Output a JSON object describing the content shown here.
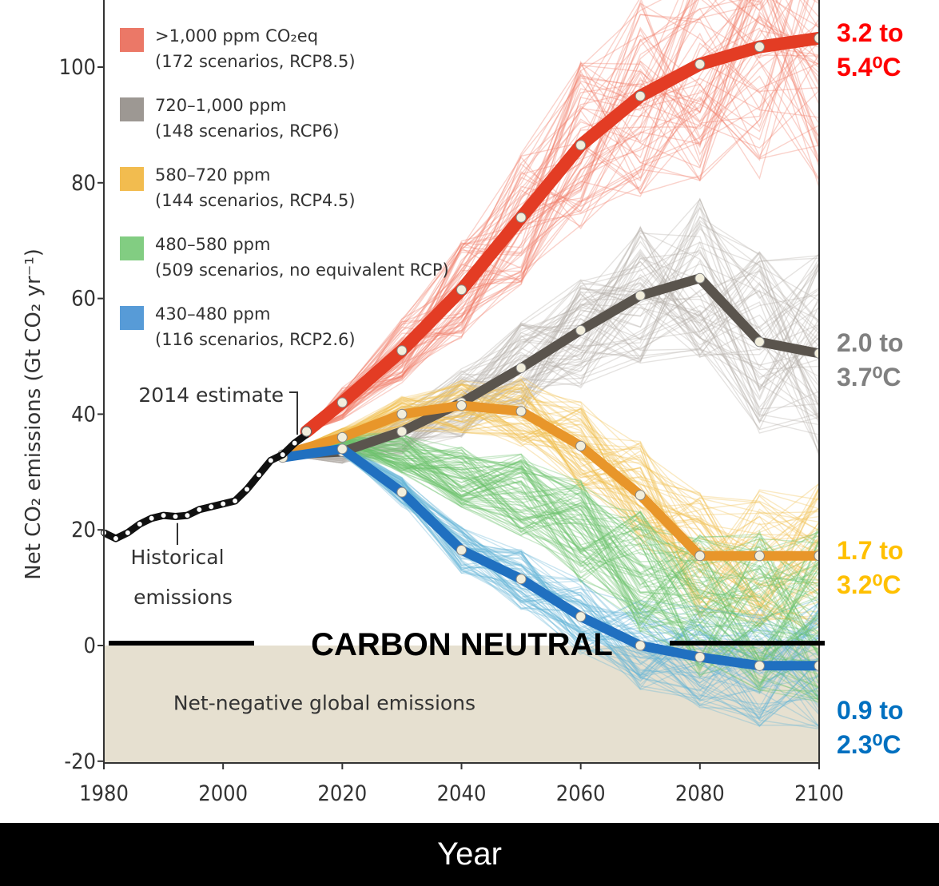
{
  "chart_data": {
    "type": "line",
    "xlabel": "Year",
    "ylabel": "Net CO₂ emissions (Gt CO₂ yr⁻¹)",
    "xlim": [
      1980,
      2100
    ],
    "ylim": [
      -20,
      110
    ],
    "x_ticks": [
      1980,
      2000,
      2020,
      2040,
      2060,
      2080,
      2100
    ],
    "y_ticks": [
      -20,
      0,
      20,
      40,
      60,
      80,
      100
    ],
    "grid": false,
    "legend_position": "top-left",
    "legend": [
      {
        "range": ">1,000 ppm CO₂eq",
        "detail": "(172 scenarios, RCP8.5)",
        "color": "#e8604c"
      },
      {
        "range": "720–1,000 ppm",
        "detail": "(148 scenarios, RCP6)",
        "color": "#8c8680"
      },
      {
        "range": "580–720 ppm",
        "detail": "(144 scenarios, RCP4.5)",
        "color": "#f0b030"
      },
      {
        "range": "480–580 ppm",
        "detail": "(509 scenarios, no equivalent RCP)",
        "color": "#6cc46c"
      },
      {
        "range": "430–480 ppm",
        "detail": "(116 scenarios, RCP2.6)",
        "color": "#3a8ad0"
      }
    ],
    "historical": {
      "label": "Historical emissions",
      "color": "#111111",
      "points": [
        [
          1980,
          19.5
        ],
        [
          1982,
          18.5
        ],
        [
          1984,
          19.5
        ],
        [
          1986,
          21
        ],
        [
          1988,
          22
        ],
        [
          1990,
          22.5
        ],
        [
          1992,
          22.3
        ],
        [
          1994,
          22.5
        ],
        [
          1996,
          23.5
        ],
        [
          1998,
          24
        ],
        [
          2000,
          24.5
        ],
        [
          2002,
          25
        ],
        [
          2004,
          27
        ],
        [
          2006,
          29.5
        ],
        [
          2008,
          32
        ],
        [
          2010,
          33
        ],
        [
          2012,
          35
        ],
        [
          2014,
          36.5
        ]
      ]
    },
    "estimate_label": "2014 estimate",
    "estimate_point": [
      2014,
      37
    ],
    "series": [
      {
        "color": "#e33c24",
        "band_color": "#f07e6a",
        "points": [
          [
            2014,
            37
          ],
          [
            2020,
            42
          ],
          [
            2030,
            51
          ],
          [
            2040,
            61.5
          ],
          [
            2050,
            74
          ],
          [
            2060,
            86.5
          ],
          [
            2070,
            95
          ],
          [
            2080,
            100.5
          ],
          [
            2090,
            103.5
          ],
          [
            2100,
            105
          ]
        ]
      },
      {
        "color": "#5a544d",
        "band_color": "#b4aea8",
        "points": [
          [
            2010,
            33
          ],
          [
            2020,
            33.5
          ],
          [
            2030,
            37
          ],
          [
            2040,
            42
          ],
          [
            2050,
            48
          ],
          [
            2060,
            54.5
          ],
          [
            2070,
            60.5
          ],
          [
            2080,
            63.5
          ],
          [
            2090,
            52.5
          ],
          [
            2100,
            50.5
          ]
        ]
      },
      {
        "color": "#e8962a",
        "band_color": "#f2c050",
        "points": [
          [
            2010,
            33
          ],
          [
            2020,
            36
          ],
          [
            2030,
            40
          ],
          [
            2040,
            41.5
          ],
          [
            2050,
            40.5
          ],
          [
            2060,
            34.5
          ],
          [
            2070,
            26
          ],
          [
            2080,
            15.5
          ],
          [
            2090,
            15.5
          ],
          [
            2100,
            15.5
          ]
        ]
      },
      {
        "color": "#2070c0",
        "band_color": "#64b4d8",
        "points": [
          [
            2010,
            32.5
          ],
          [
            2020,
            34
          ],
          [
            2030,
            26.5
          ],
          [
            2040,
            16.5
          ],
          [
            2050,
            11.5
          ],
          [
            2060,
            5
          ],
          [
            2070,
            0
          ],
          [
            2080,
            -2
          ],
          [
            2090,
            -3.5
          ],
          [
            2100,
            -3.5
          ]
        ]
      }
    ],
    "negative_region_label": "Net-negative global emissions",
    "neutral_label": "CARBON NEUTRAL",
    "temperature_labels": [
      {
        "text": "3.2 to",
        "sub": "5.4⁰C",
        "color": "#ff0000"
      },
      {
        "text": "2.0 to",
        "sub": "3.7⁰C",
        "color": "#808080"
      },
      {
        "text": "1.7 to",
        "sub": "3.2⁰C",
        "color": "#ffc000"
      },
      {
        "text": "0.9 to",
        "sub": "2.3⁰C",
        "color": "#0070c0"
      }
    ]
  }
}
